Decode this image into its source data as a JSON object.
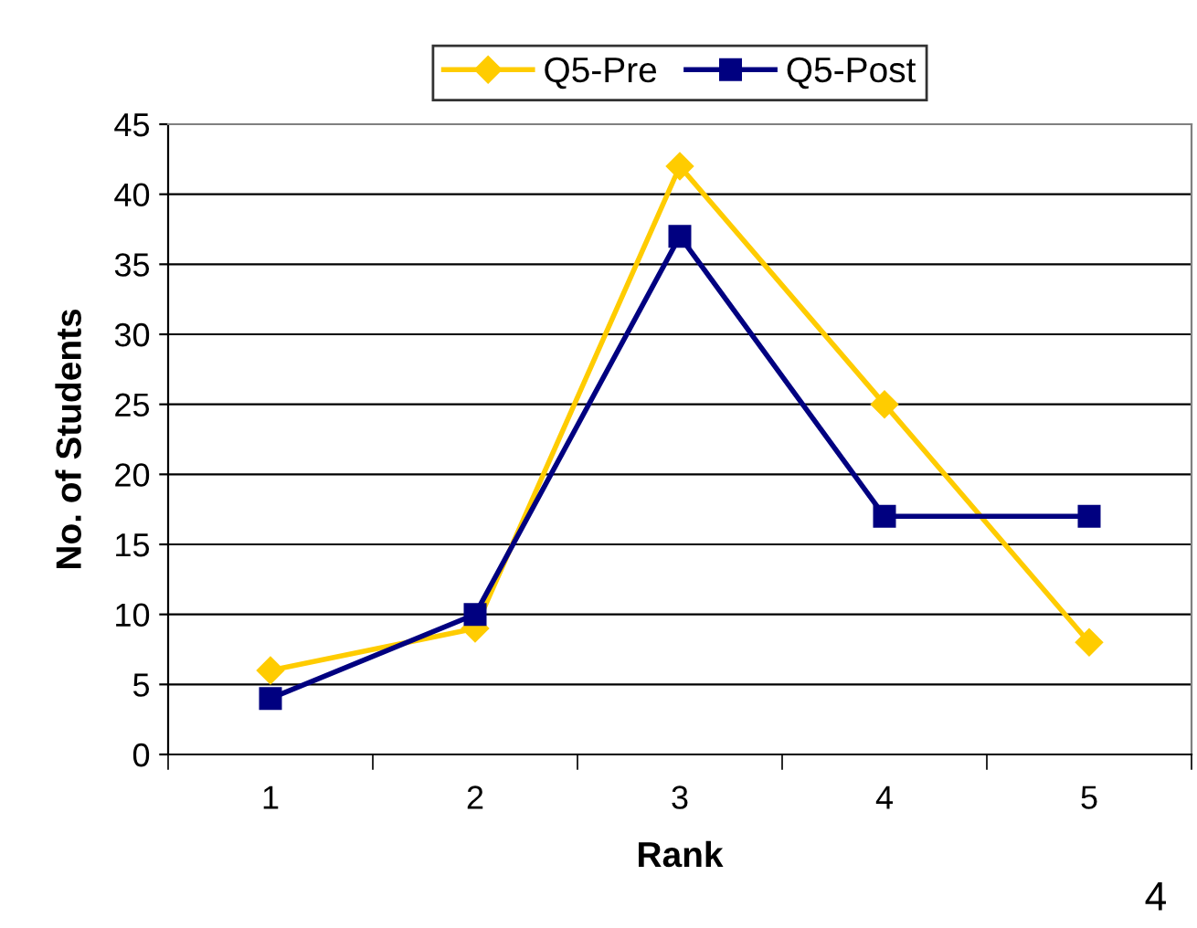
{
  "chart_data": {
    "type": "line",
    "xlabel": "Rank",
    "ylabel": "No. of Students",
    "categories": [
      "1",
      "2",
      "3",
      "4",
      "5"
    ],
    "series": [
      {
        "name": "Q5-Pre",
        "color": "#ffcc00",
        "marker": "diamond",
        "values": [
          6,
          9,
          42,
          25,
          8
        ]
      },
      {
        "name": "Q5-Post",
        "color": "#000080",
        "marker": "square",
        "values": [
          4,
          10,
          37,
          17,
          17
        ]
      }
    ],
    "ylim": [
      0,
      45
    ],
    "yticks": [
      0,
      5,
      10,
      15,
      20,
      25,
      30,
      35,
      40,
      45
    ],
    "grid": "y",
    "legend": "top",
    "annotations": [
      "4"
    ]
  }
}
